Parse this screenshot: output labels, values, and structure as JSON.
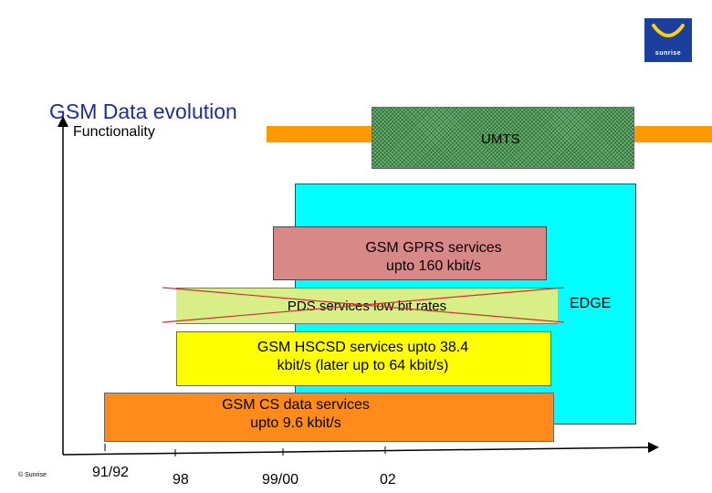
{
  "logo": {
    "text": "sunrise"
  },
  "title": "GSM Data evolution",
  "y_axis_label": "Functionality",
  "blocks": {
    "umts": "UMTS",
    "edge": "EDGE",
    "gprs": {
      "line1": "GSM GPRS services",
      "line2": "upto 160 kbit/s"
    },
    "pds": "PDS services low bit rates",
    "hscsd": {
      "line1": "GSM HSCSD services upto 38.4",
      "line2": "kbit/s (later up to 64 kbit/s)"
    },
    "cs": {
      "line1": "GSM CS data services",
      "line2": "upto 9.6 kbit/s"
    }
  },
  "x_ticks": [
    "91/92",
    "98",
    "99/00",
    "02"
  ],
  "copyright": "© Sunrise",
  "colors": {
    "title": "#1f2f8f",
    "umts": "#6fb07b",
    "edge": "#00ffff",
    "gprs": "#d98888",
    "pds": "#d8ee86",
    "hscsd": "#ffff00",
    "cs": "#ff8c1a",
    "accent_bar": "#ff9900",
    "logo": "#1a3f9e"
  }
}
